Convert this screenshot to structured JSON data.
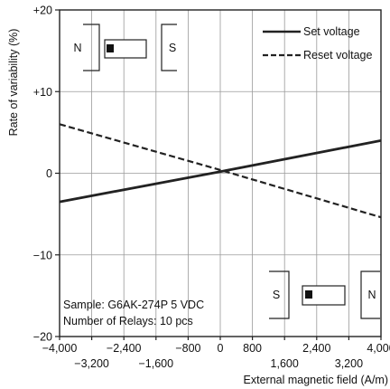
{
  "chart_data": {
    "type": "line",
    "xlabel": "External magnetic field (A/m)",
    "ylabel": "Rate of variability (%)",
    "xlim": [
      -4000,
      4000
    ],
    "ylim": [
      -20,
      20
    ],
    "x_ticks": [
      {
        "value": -4000,
        "label": "−4,000",
        "row": 0
      },
      {
        "value": -3200,
        "label": "−3,200",
        "row": 1
      },
      {
        "value": -2400,
        "label": "−2,400",
        "row": 0
      },
      {
        "value": -1600,
        "label": "−1,600",
        "row": 1
      },
      {
        "value": -800,
        "label": "−800",
        "row": 0
      },
      {
        "value": 0,
        "label": "0",
        "row": 0
      },
      {
        "value": 800,
        "label": "800",
        "row": 0
      },
      {
        "value": 1600,
        "label": "1,600",
        "row": 1
      },
      {
        "value": 2400,
        "label": "2,400",
        "row": 0
      },
      {
        "value": 3200,
        "label": "3,200",
        "row": 1
      },
      {
        "value": 4000,
        "label": "4,000",
        "row": 0
      }
    ],
    "y_ticks": [
      {
        "value": 20,
        "label": "+20"
      },
      {
        "value": 10,
        "label": "+10"
      },
      {
        "value": 0,
        "label": "0"
      },
      {
        "value": -10,
        "label": "−10"
      },
      {
        "value": -20,
        "label": "−20"
      }
    ],
    "grid": true,
    "legend_position": "top-right",
    "series": [
      {
        "name": "Set voltage",
        "style": "solid",
        "color": "#222222",
        "x": [
          -4000,
          0,
          4000
        ],
        "y": [
          -3.5,
          0.2,
          4.0
        ]
      },
      {
        "name": "Reset voltage",
        "style": "dashed",
        "color": "#222222",
        "x": [
          -4000,
          0,
          4000
        ],
        "y": [
          6.0,
          0.4,
          -5.4
        ]
      }
    ],
    "annotations": {
      "sample": "Sample: G6AK-274P 5 VDC",
      "relays": "Number of Relays: 10 pcs",
      "magnet_left": {
        "pole_outer": "N",
        "pole_inner": "S"
      },
      "magnet_right": {
        "pole_outer": "S",
        "pole_inner": "N"
      }
    }
  }
}
